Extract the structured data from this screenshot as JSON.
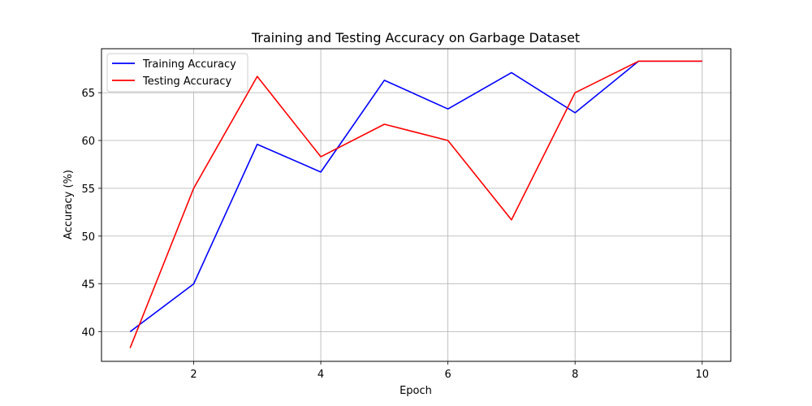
{
  "chart_data": {
    "type": "line",
    "title": "Training and Testing Accuracy on Garbage Dataset",
    "xlabel": "Epoch",
    "ylabel": "Accuracy (%)",
    "x": [
      1,
      2,
      3,
      4,
      5,
      6,
      7,
      8,
      9,
      10
    ],
    "xlim": [
      0.55,
      10.45
    ],
    "ylim": [
      36.9,
      69.6
    ],
    "xticks": [
      2,
      4,
      6,
      8,
      10
    ],
    "yticks": [
      40,
      45,
      50,
      55,
      60,
      65
    ],
    "grid": true,
    "legend_position": "upper-left",
    "series": [
      {
        "name": "Training Accuracy",
        "color": "#0000ff",
        "values": [
          40.0,
          45.0,
          59.6,
          56.7,
          66.3,
          63.3,
          67.1,
          62.9,
          68.3,
          68.3
        ]
      },
      {
        "name": "Testing Accuracy",
        "color": "#ff0000",
        "values": [
          38.3,
          55.0,
          66.7,
          58.3,
          61.7,
          60.0,
          51.7,
          65.0,
          68.3,
          68.3
        ]
      }
    ]
  }
}
